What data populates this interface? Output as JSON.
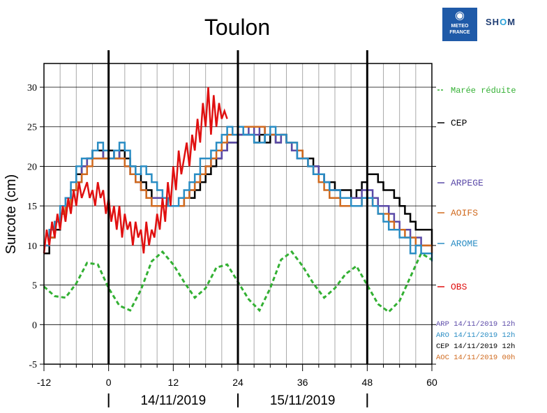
{
  "logos": {
    "meteo_france": [
      "METEO",
      "FRANCE"
    ],
    "shom": [
      "SH",
      "O",
      "M"
    ]
  },
  "chart_data": {
    "type": "line",
    "title": "Toulon",
    "ylabel": "Surcote (cm)",
    "xlim": [
      -12,
      60
    ],
    "ylim": [
      -5,
      33
    ],
    "xticks": [
      "-12",
      "0",
      "12",
      "24",
      "36",
      "48",
      "60"
    ],
    "yticks": [
      "-5",
      "0",
      "5",
      "10",
      "15",
      "20",
      "25",
      "30"
    ],
    "day_labels": [
      "14/11/2019",
      "15/11/2019"
    ],
    "grid": true,
    "legend_position": "right",
    "series": [
      {
        "name": "Marée réduite",
        "color": "#33b033",
        "style": "dashed",
        "x": [
          -12,
          -10,
          -8,
          -6,
          -4,
          -2,
          0,
          2,
          4,
          6,
          8,
          10,
          12,
          14,
          16,
          18,
          20,
          22,
          24,
          26,
          28,
          30,
          32,
          34,
          36,
          38,
          40,
          42,
          44,
          46,
          48,
          50,
          52,
          54,
          56,
          58,
          60
        ],
        "values": [
          4.8,
          3.6,
          3.4,
          5.2,
          7.8,
          7.6,
          4.6,
          2.4,
          1.8,
          4.4,
          8.0,
          9.2,
          7.6,
          5.4,
          3.4,
          4.6,
          7.2,
          7.6,
          5.4,
          3.2,
          1.8,
          4.6,
          8.2,
          9.2,
          7.4,
          5.2,
          3.4,
          4.6,
          6.4,
          7.4,
          5.0,
          2.6,
          1.6,
          3.0,
          6.0,
          9.0,
          8.2
        ]
      },
      {
        "name": "CEP",
        "color": "#000000",
        "style": "solid",
        "x": [
          -12,
          -11,
          -10,
          -9,
          -8,
          -7,
          -6,
          -5,
          -4,
          -3,
          -2,
          -1,
          0,
          1,
          2,
          3,
          4,
          5,
          6,
          7,
          8,
          9,
          10,
          11,
          12,
          13,
          14,
          15,
          16,
          17,
          18,
          19,
          20,
          21,
          22,
          23,
          24,
          25,
          26,
          27,
          28,
          29,
          30,
          31,
          32,
          33,
          34,
          35,
          36,
          37,
          38,
          39,
          40,
          41,
          42,
          43,
          44,
          45,
          46,
          47,
          48,
          49,
          50,
          51,
          52,
          53,
          54,
          55,
          56,
          57,
          58,
          59,
          60
        ],
        "values": [
          9,
          11,
          12,
          14,
          15,
          17,
          19,
          20,
          21,
          22,
          22,
          21,
          22,
          21,
          22,
          21,
          20,
          19,
          18,
          17,
          16,
          16,
          16,
          15,
          15,
          15,
          16,
          16,
          17,
          18,
          19,
          20,
          21,
          22,
          23,
          23,
          24,
          24,
          24,
          23,
          24,
          23,
          24,
          23,
          24,
          23,
          22,
          22,
          21,
          21,
          20,
          19,
          18,
          18,
          17,
          17,
          17,
          16,
          17,
          18,
          19,
          19,
          18,
          17,
          17,
          16,
          15,
          14,
          13,
          12,
          12,
          12,
          10
        ]
      },
      {
        "name": "ARPEGE",
        "color": "#5b4aa8",
        "style": "solid",
        "x": [
          -12,
          -11,
          -10,
          -9,
          -8,
          -7,
          -6,
          -5,
          -4,
          -3,
          -2,
          -1,
          0,
          1,
          2,
          3,
          4,
          5,
          6,
          7,
          8,
          9,
          10,
          11,
          12,
          13,
          14,
          15,
          16,
          17,
          18,
          19,
          20,
          21,
          22,
          23,
          24,
          25,
          26,
          27,
          28,
          29,
          30,
          31,
          32,
          33,
          34,
          35,
          36,
          37,
          38,
          39,
          40,
          41,
          42,
          43,
          44,
          45,
          46,
          47,
          48,
          49,
          50,
          51,
          52,
          53,
          54,
          55,
          56,
          57,
          58,
          59,
          60
        ],
        "values": [
          10,
          11,
          13,
          14,
          16,
          17,
          18,
          20,
          21,
          21,
          21,
          22,
          21,
          22,
          21,
          20,
          19,
          18,
          17,
          16,
          16,
          16,
          15,
          15,
          15,
          15,
          16,
          17,
          18,
          19,
          20,
          21,
          21,
          22,
          23,
          23,
          24,
          24,
          25,
          24,
          25,
          24,
          24,
          23,
          24,
          23,
          22,
          21,
          21,
          20,
          20,
          19,
          18,
          17,
          17,
          16,
          16,
          16,
          16,
          17,
          17,
          16,
          15,
          15,
          14,
          13,
          12,
          12,
          11,
          11,
          10,
          10,
          9
        ]
      },
      {
        "name": "AOIFS",
        "color": "#d06a1e",
        "style": "solid",
        "x": [
          -12,
          -11,
          -10,
          -9,
          -8,
          -7,
          -6,
          -5,
          -4,
          -3,
          -2,
          -1,
          0,
          1,
          2,
          3,
          4,
          5,
          6,
          7,
          8,
          9,
          10,
          11,
          12,
          13,
          14,
          15,
          16,
          17,
          18,
          19,
          20,
          21,
          22,
          23,
          24,
          25,
          26,
          27,
          28,
          29,
          30,
          31,
          32,
          33,
          34,
          35,
          36,
          37,
          38,
          39,
          40,
          41,
          42,
          43,
          44,
          45,
          46,
          47,
          48,
          49,
          50,
          51,
          52,
          53,
          54,
          55,
          56,
          57,
          58,
          59,
          60
        ],
        "values": [
          10,
          11,
          13,
          14,
          15,
          17,
          18,
          19,
          20,
          21,
          21,
          21,
          21,
          21,
          21,
          20,
          19,
          18,
          17,
          16,
          15,
          15,
          15,
          15,
          15,
          15,
          16,
          17,
          18,
          19,
          20,
          21,
          22,
          23,
          24,
          24,
          25,
          25,
          25,
          25,
          25,
          24,
          24,
          24,
          24,
          23,
          23,
          22,
          21,
          20,
          19,
          18,
          17,
          16,
          16,
          15,
          15,
          15,
          15,
          16,
          16,
          15,
          14,
          14,
          13,
          12,
          12,
          11,
          11,
          10,
          10,
          10,
          9
        ]
      },
      {
        "name": "AROME",
        "color": "#2a8dc4",
        "style": "solid",
        "x": [
          -12,
          -11,
          -10,
          -9,
          -8,
          -7,
          -6,
          -5,
          -4,
          -3,
          -2,
          -1,
          0,
          1,
          2,
          3,
          4,
          5,
          6,
          7,
          8,
          9,
          10,
          11,
          12,
          13,
          14,
          15,
          16,
          17,
          18,
          19,
          20,
          21,
          22,
          23,
          24,
          25,
          26,
          27,
          28,
          29,
          30,
          31,
          32,
          33,
          34,
          35,
          36,
          37,
          38,
          39,
          40,
          41,
          42,
          43,
          44,
          45,
          46,
          47,
          48,
          49,
          50,
          51,
          52,
          53,
          54,
          55,
          56,
          57,
          58,
          59,
          60
        ],
        "values": [
          10,
          12,
          13,
          15,
          16,
          18,
          20,
          21,
          21,
          22,
          23,
          22,
          21,
          22,
          23,
          22,
          20,
          19,
          20,
          19,
          18,
          17,
          16,
          15,
          15,
          16,
          17,
          18,
          19,
          21,
          21,
          22,
          23,
          24,
          25,
          24,
          25,
          24,
          24,
          23,
          23,
          24,
          25,
          24,
          24,
          23,
          23,
          21,
          21,
          20,
          19,
          19,
          18,
          17,
          17,
          16,
          16,
          15,
          15,
          16,
          16,
          15,
          14,
          13,
          12,
          12,
          11,
          11,
          9,
          10,
          9,
          9,
          8
        ]
      },
      {
        "name": "OBS",
        "color": "#e01010",
        "style": "solid",
        "x": [
          -12,
          -11.5,
          -11,
          -10.5,
          -10,
          -9.5,
          -9,
          -8.5,
          -8,
          -7.5,
          -7,
          -6.5,
          -6,
          -5.5,
          -5,
          -4.5,
          -4,
          -3.5,
          -3,
          -2.5,
          -2,
          -1.5,
          -1,
          -0.5,
          0,
          0.5,
          1,
          1.5,
          2,
          2.5,
          3,
          3.5,
          4,
          4.5,
          5,
          5.5,
          6,
          6.5,
          7,
          7.5,
          8,
          8.5,
          9,
          9.5,
          10,
          10.5,
          11,
          11.5,
          12,
          12.5,
          13,
          13.5,
          14,
          14.5,
          15,
          15.5,
          16,
          16.5,
          17,
          17.5,
          18,
          18.5,
          19,
          19.5,
          20,
          20.5,
          21,
          21.5,
          22
        ],
        "values": [
          9,
          12,
          10,
          13,
          11,
          14,
          12,
          15,
          13,
          16,
          14,
          17,
          15,
          18,
          16,
          17,
          18,
          16,
          17,
          15,
          18,
          16,
          17,
          14,
          16,
          13,
          15,
          12,
          15,
          11,
          14,
          12,
          13,
          10,
          13,
          11,
          12,
          9,
          13,
          10,
          12,
          11,
          14,
          12,
          16,
          13,
          18,
          15,
          20,
          17,
          22,
          19,
          21,
          23,
          20,
          24,
          22,
          26,
          23,
          28,
          25,
          30,
          24,
          29,
          25,
          28,
          26,
          27,
          26
        ]
      }
    ],
    "legend_annotations": [
      {
        "label": "ARP 14/11/2019 12h",
        "color": "#5b4aa8"
      },
      {
        "label": "ARO 14/11/2019 12h",
        "color": "#2a8dc4"
      },
      {
        "label": "CEP 14/11/2019 12h",
        "color": "#000000"
      },
      {
        "label": "AOC 14/11/2019 00h",
        "color": "#d06a1e"
      }
    ]
  }
}
